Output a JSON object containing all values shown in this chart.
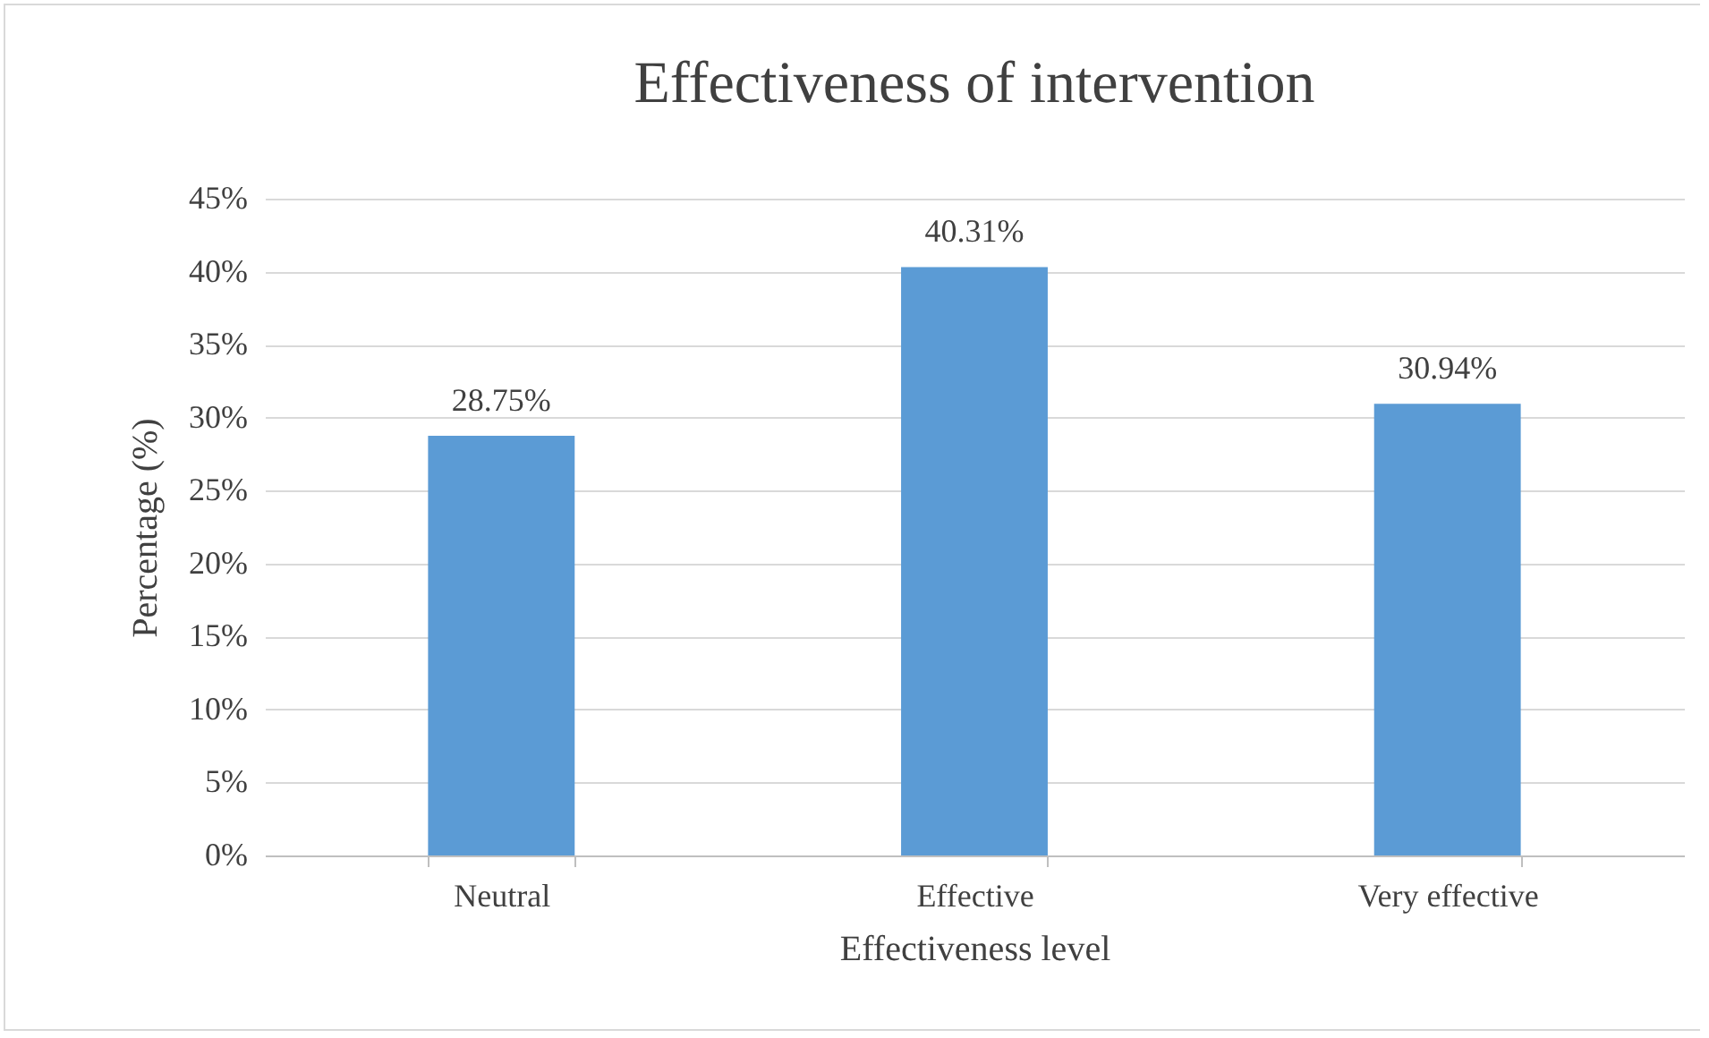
{
  "chart_data": {
    "type": "bar",
    "title": "Effectiveness of intervention",
    "xlabel": "Effectiveness level",
    "ylabel": "Percentage (%)",
    "categories": [
      "Neutral",
      "Effective",
      "Very effective"
    ],
    "values": [
      28.75,
      40.31,
      30.94
    ],
    "value_labels": [
      "28.75%",
      "40.31%",
      "30.94%"
    ],
    "color": "#5b9bd5",
    "ylim": [
      0,
      45
    ],
    "yticks": [
      {
        "value": 0,
        "label": "0%"
      },
      {
        "value": 5,
        "label": "5%"
      },
      {
        "value": 10,
        "label": "10%"
      },
      {
        "value": 15,
        "label": "15%"
      },
      {
        "value": 20,
        "label": "20%"
      },
      {
        "value": 25,
        "label": "25%"
      },
      {
        "value": 30,
        "label": "30%"
      },
      {
        "value": 35,
        "label": "35%"
      },
      {
        "value": 40,
        "label": "40%"
      },
      {
        "value": 45,
        "label": "45%"
      }
    ],
    "grid": "y"
  }
}
